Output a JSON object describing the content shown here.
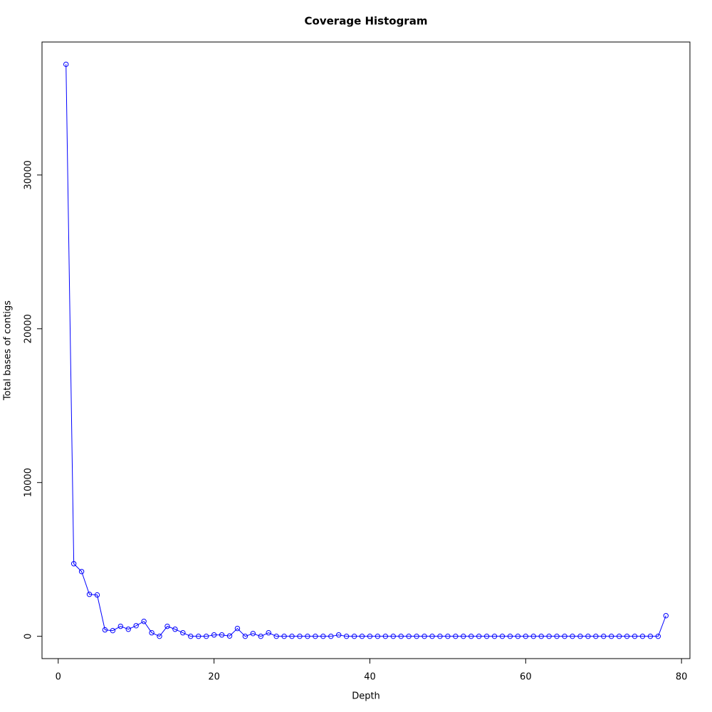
{
  "chart_data": {
    "type": "line",
    "title": "Coverage Histogram",
    "x_label": "Depth",
    "y_label": "Total bases of contigs",
    "x": [
      1,
      2,
      3,
      4,
      5,
      6,
      7,
      8,
      9,
      10,
      11,
      12,
      13,
      14,
      15,
      16,
      17,
      18,
      19,
      20,
      21,
      22,
      23,
      24,
      25,
      26,
      27,
      28,
      29,
      30,
      31,
      32,
      33,
      34,
      35,
      36,
      37,
      38,
      39,
      40,
      41,
      42,
      43,
      44,
      45,
      46,
      47,
      48,
      49,
      50,
      51,
      52,
      53,
      54,
      55,
      56,
      57,
      58,
      59,
      60,
      61,
      62,
      63,
      64,
      65,
      66,
      67,
      68,
      69,
      70,
      71,
      72,
      73,
      74,
      75,
      76,
      77,
      78
    ],
    "series": [
      {
        "color": "#0000ff",
        "values": [
          37200,
          4720,
          4210,
          2730,
          2690,
          420,
          370,
          650,
          460,
          690,
          970,
          230,
          0,
          650,
          460,
          230,
          0,
          0,
          0,
          90,
          90,
          20,
          510,
          0,
          180,
          0,
          230,
          0,
          0,
          0,
          0,
          0,
          0,
          0,
          0,
          90,
          0,
          0,
          0,
          0,
          0,
          0,
          0,
          0,
          0,
          0,
          0,
          0,
          0,
          0,
          0,
          0,
          0,
          0,
          0,
          0,
          0,
          0,
          0,
          0,
          0,
          0,
          0,
          0,
          0,
          0,
          0,
          0,
          0,
          0,
          0,
          0,
          0,
          0,
          0,
          0,
          0,
          1340
        ]
      }
    ],
    "xlim": [
      -2.08,
      81.08
    ],
    "ylim": [
      -1450,
      38650
    ],
    "xticks": [
      0,
      20,
      40,
      60,
      80
    ],
    "yticks": [
      0,
      10000,
      20000,
      30000
    ]
  }
}
